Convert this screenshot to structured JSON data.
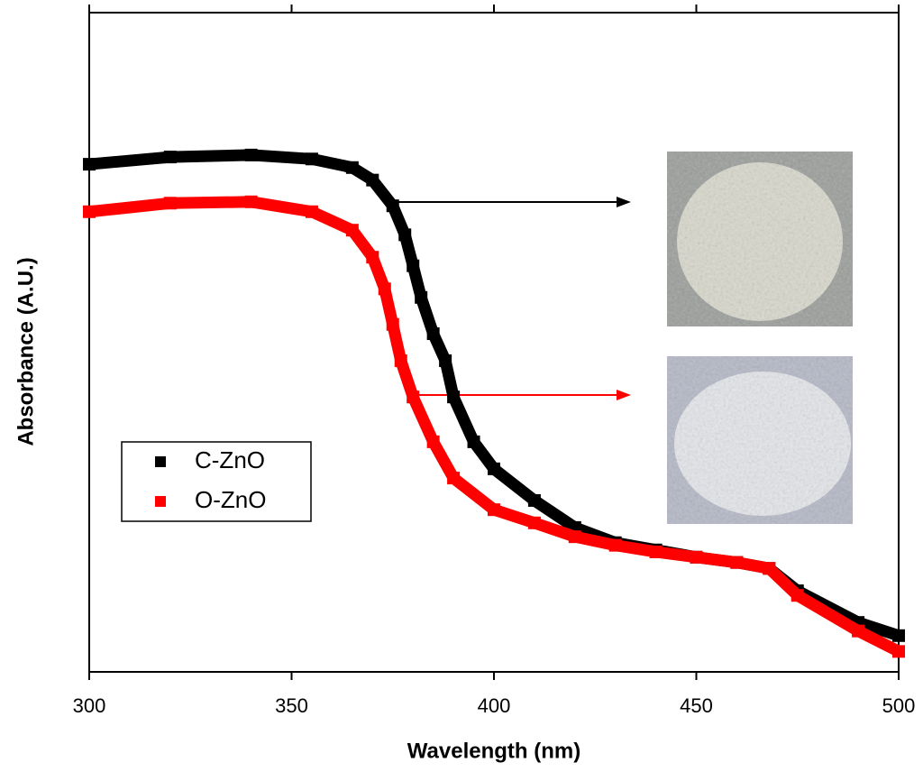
{
  "chart_data": {
    "type": "line",
    "x_label": "Wavelength (nm)",
    "y_label": "Absorbance (A.U.)",
    "xlim": [
      300,
      500
    ],
    "xticks": [
      300,
      350,
      400,
      450,
      500
    ],
    "ylim": [
      0,
      1
    ],
    "legend": "lower left",
    "series": [
      {
        "name": "C-ZnO",
        "color": "#000000",
        "x": [
          300,
          320,
          340,
          355,
          365,
          370,
          375,
          378,
          380,
          382,
          385,
          388,
          390,
          395,
          400,
          410,
          420,
          430,
          440,
          450,
          460,
          468,
          475,
          490,
          500
        ],
        "values": [
          0.77,
          0.781,
          0.784,
          0.778,
          0.765,
          0.746,
          0.707,
          0.663,
          0.616,
          0.568,
          0.513,
          0.472,
          0.417,
          0.349,
          0.308,
          0.26,
          0.219,
          0.196,
          0.185,
          0.174,
          0.166,
          0.157,
          0.123,
          0.075,
          0.055
        ]
      },
      {
        "name": "O-ZnO",
        "color": "#ff0000",
        "x": [
          300,
          320,
          340,
          355,
          365,
          370,
          373,
          375,
          377,
          380,
          385,
          390,
          400,
          410,
          420,
          430,
          440,
          450,
          460,
          468,
          475,
          490,
          500
        ],
        "values": [
          0.698,
          0.711,
          0.713,
          0.698,
          0.67,
          0.629,
          0.581,
          0.527,
          0.472,
          0.417,
          0.349,
          0.294,
          0.246,
          0.226,
          0.205,
          0.192,
          0.182,
          0.174,
          0.166,
          0.157,
          0.116,
          0.062,
          0.031
        ]
      }
    ]
  }
}
